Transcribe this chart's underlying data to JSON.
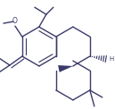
{
  "bg_color": "#ffffff",
  "line_color": "#3a3a6a",
  "lw": 1.0,
  "figsize": [
    1.29,
    1.22
  ],
  "dpi": 100,
  "xlim": [
    0,
    129
  ],
  "ylim": [
    0,
    122
  ]
}
